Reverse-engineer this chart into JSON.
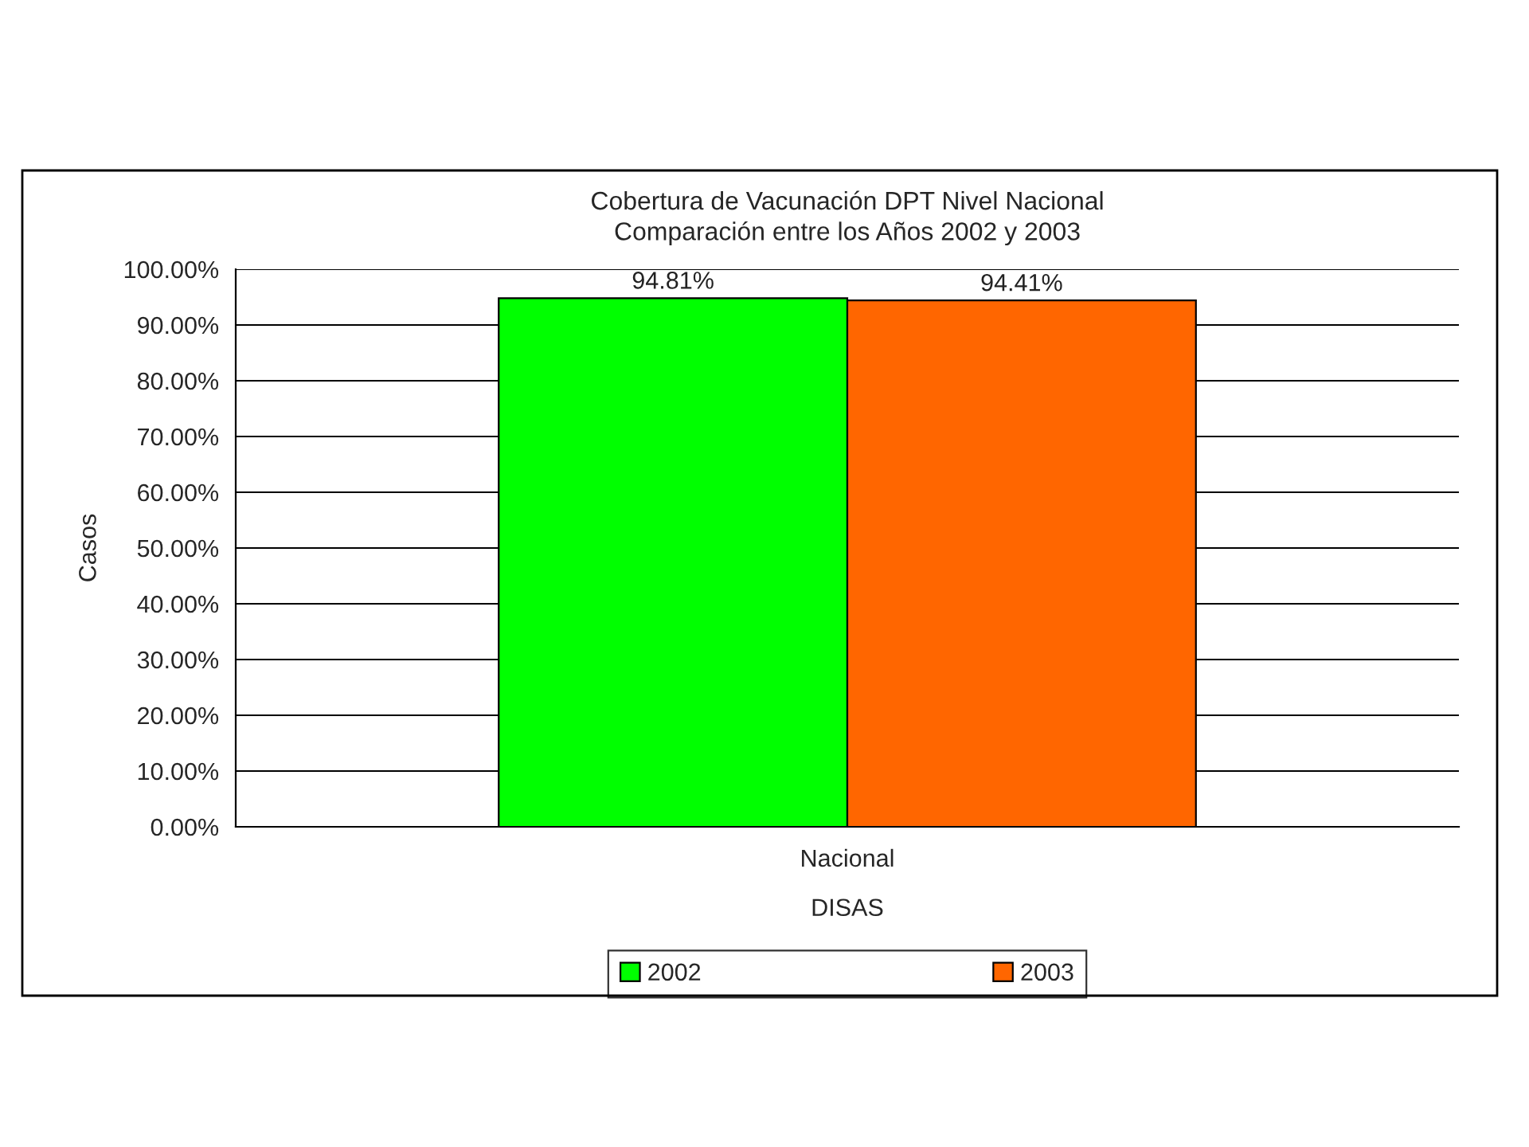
{
  "chart_data": {
    "type": "bar",
    "title": "Cobertura de Vacunación DPT Nivel Nacional\nComparación entre los Años 2002 y 2003",
    "xlabel": "DISAS",
    "ylabel": "Casos",
    "categories": [
      "Nacional"
    ],
    "series": [
      {
        "name": "2002",
        "color": "#00ff00",
        "values": [
          94.81
        ],
        "value_labels": [
          "94.81%"
        ]
      },
      {
        "name": "2003",
        "color": "#ff6600",
        "values": [
          94.41
        ],
        "value_labels": [
          "94.41%"
        ]
      }
    ],
    "ylim": [
      0,
      100
    ],
    "yticks": [
      {
        "value": 0,
        "label": "0.00%"
      },
      {
        "value": 10,
        "label": "10.00%"
      },
      {
        "value": 20,
        "label": "20.00%"
      },
      {
        "value": 30,
        "label": "30.00%"
      },
      {
        "value": 40,
        "label": "40.00%"
      },
      {
        "value": 50,
        "label": "50.00%"
      },
      {
        "value": 60,
        "label": "60.00%"
      },
      {
        "value": 70,
        "label": "70.00%"
      },
      {
        "value": 80,
        "label": "80.00%"
      },
      {
        "value": 90,
        "label": "90.00%"
      },
      {
        "value": 100,
        "label": "100.00%"
      }
    ],
    "grid": "y",
    "legend": "bottom"
  }
}
